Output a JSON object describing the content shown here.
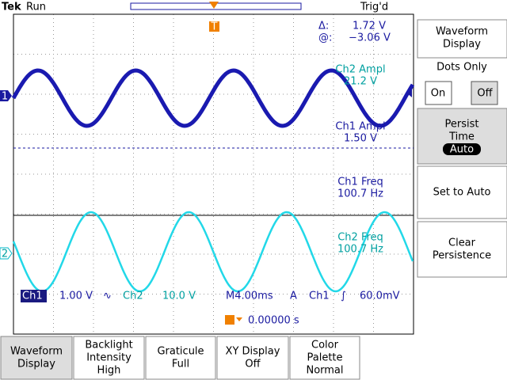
{
  "header": {
    "brand": "Tek",
    "status": "Run",
    "trigger": "Trig'd",
    "trigger_marker": "T"
  },
  "cursor_readout": {
    "delta_label": "Δ:",
    "delta_value": "1.72 V",
    "at_label": "@:",
    "at_value": "−3.06 V"
  },
  "channel_markers": {
    "ch1": "1",
    "ch2": "2"
  },
  "measurements": [
    {
      "label": "Ch2 Ampl",
      "value": "21.2 V"
    },
    {
      "label": "Ch1 Ampl",
      "value": "1.50 V"
    },
    {
      "label": "Ch1 Freq",
      "value": "100.7 Hz"
    },
    {
      "label": "Ch2 Freq",
      "value": "100.7 Hz"
    }
  ],
  "status_bar": {
    "ch1": "Ch1",
    "ch1_scale": "1.00 V",
    "ch1_coupling": "∿",
    "ch2": "Ch2",
    "ch2_scale": "10.0 V",
    "timebase": "M4.00ms",
    "trigger_mode": "A",
    "trigger_source": "Ch1",
    "trigger_slope": "∫",
    "trigger_level": "60.0mV",
    "trigger_position": "0.00000 s"
  },
  "side_menu": {
    "title": [
      "Waveform",
      "Display"
    ],
    "dots_only": "Dots Only",
    "on": "On",
    "off": "Off",
    "persist": [
      "Persist",
      "Time"
    ],
    "persist_value": "Auto",
    "set_auto": "Set to Auto",
    "clear": [
      "Clear",
      "Persistence"
    ]
  },
  "bottom_menu": [
    [
      "Waveform",
      "Display"
    ],
    [
      "Backlight",
      "Intensity",
      "High"
    ],
    [
      "Graticule",
      "Full"
    ],
    [
      "XY Display",
      "Off"
    ],
    [
      "Color",
      "Palette",
      "Normal"
    ]
  ]
}
